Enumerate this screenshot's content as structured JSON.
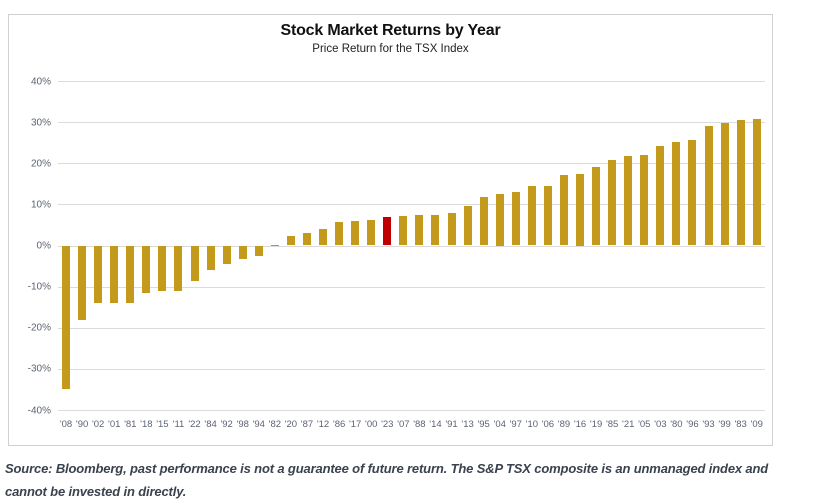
{
  "chart": {
    "title": "Stock Market Returns by Year",
    "subtitle": "Price Return for the TSX Index"
  },
  "chart_data": {
    "type": "bar",
    "title": "Stock Market Returns by Year",
    "subtitle": "Price Return for the TSX Index",
    "categories": [
      "'08",
      "'90",
      "'02",
      "'01",
      "'81",
      "'18",
      "'15",
      "'11",
      "'22",
      "'84",
      "'92",
      "'98",
      "'94",
      "'82",
      "'20",
      "'87",
      "'12",
      "'86",
      "'17",
      "'00",
      "'23",
      "'07",
      "'88",
      "'14",
      "'91",
      "'13",
      "'95",
      "'04",
      "'97",
      "'10",
      "'06",
      "'89",
      "'16",
      "'19",
      "'85",
      "'21",
      "'05",
      "'03",
      "'80",
      "'96",
      "'93",
      "'99",
      "'83",
      "'09"
    ],
    "values": [
      -35.0,
      -18.0,
      -14.0,
      -13.9,
      -13.9,
      -11.6,
      -11.1,
      -11.1,
      -8.7,
      -6.0,
      -4.6,
      -3.2,
      -2.5,
      0.2,
      2.2,
      3.1,
      4.0,
      5.7,
      6.0,
      6.2,
      7.0,
      7.2,
      7.3,
      7.4,
      7.9,
      9.6,
      11.9,
      12.5,
      13.0,
      14.4,
      14.5,
      17.1,
      17.5,
      19.1,
      20.8,
      21.7,
      21.9,
      24.3,
      25.1,
      25.7,
      29.0,
      29.7,
      30.4,
      30.7
    ],
    "sort_order": "ascending",
    "highlight": {
      "category": "'23",
      "index": 20
    },
    "y_ticks": [
      "40%",
      "30%",
      "20%",
      "10%",
      "0%",
      "-10%",
      "-20%",
      "-30%",
      "-40%"
    ],
    "y_tick_values": [
      40,
      30,
      20,
      10,
      0,
      -10,
      -20,
      -30,
      -40
    ],
    "ylim": [
      -40,
      40
    ],
    "xlabel": "",
    "ylabel": "",
    "grid": true,
    "legend": false,
    "bar_color": "#C49A1C",
    "highlight_color": "#C00000"
  },
  "footer": {
    "text": "Source: Bloomberg, past performance is not a guarantee of future return. The S&P TSX composite is an unmanaged index and cannot be invested in directly."
  },
  "colors": {
    "bar_gold": "#C49A1C",
    "bar_red": "#C00000",
    "gridline": "#DBDBDB",
    "card_border": "#D0D0D0",
    "axis_text": "#5C6370",
    "footer_text": "#3A424E"
  }
}
